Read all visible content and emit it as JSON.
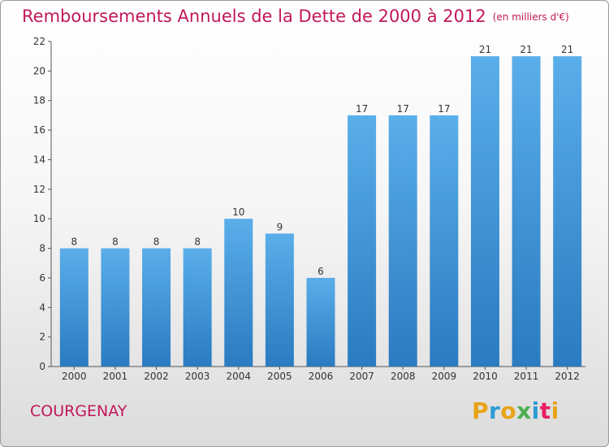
{
  "title": "Remboursements Annuels de la Dette de 2000 à 2012",
  "unit_note": "(en milliers d'€)",
  "town": "COURGENAY",
  "logo": {
    "text": "Proxiti",
    "letters": [
      "P",
      "r",
      "o",
      "x",
      "i",
      "t",
      "i"
    ],
    "colors": [
      "#e8a317",
      "#2e9bd6",
      "#e8a317",
      "#4caf50",
      "#2e9bd6",
      "#e91e63",
      "#e8a317"
    ]
  },
  "colors": {
    "bar": "#3a8fd6",
    "bar_light": "#5aaeea",
    "accent": "#c2185b"
  },
  "chart_data": {
    "type": "bar",
    "title": "Remboursements Annuels de la Dette de 2000 à 2012",
    "categories": [
      "2000",
      "2001",
      "2002",
      "2003",
      "2004",
      "2005",
      "2006",
      "2007",
      "2008",
      "2009",
      "2010",
      "2011",
      "2012"
    ],
    "values": [
      8,
      8,
      8,
      8,
      10,
      9,
      6,
      17,
      17,
      17,
      21,
      21,
      21
    ],
    "ylim": [
      0,
      22
    ],
    "yticks": [
      0,
      2,
      4,
      6,
      8,
      10,
      12,
      14,
      16,
      18,
      20,
      22
    ],
    "grid": false,
    "xlabel": "",
    "ylabel": ""
  }
}
